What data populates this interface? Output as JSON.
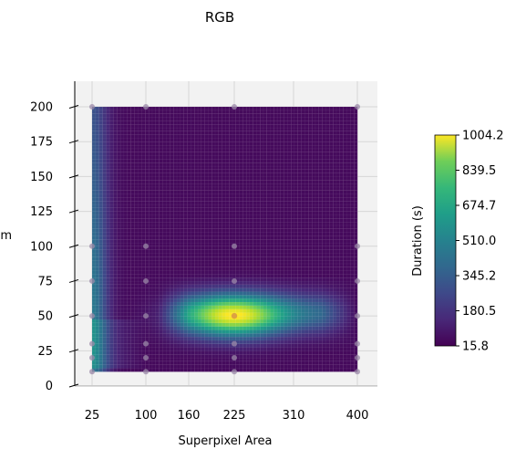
{
  "chart_data": {
    "type": "heatmap",
    "title": "RGB",
    "xlabel": "Superpixel Area",
    "ylabel": "m",
    "colorbar_label": "Duration (s)",
    "colormap": "viridis",
    "x_ticks": [
      25,
      100,
      160,
      225,
      310,
      400
    ],
    "y_ticks": [
      0,
      25,
      50,
      75,
      100,
      125,
      150,
      175,
      200
    ],
    "colorbar_ticks": [
      15.8,
      180.5,
      345.2,
      510.0,
      674.7,
      839.5,
      1004.2
    ],
    "xlim": [
      25,
      400
    ],
    "ylim": [
      10,
      200
    ],
    "zlim": [
      15.8,
      1004.2
    ],
    "grid": true,
    "sample_x": [
      25,
      100,
      225,
      400
    ],
    "sample_y": [
      10,
      20,
      30,
      50,
      75,
      100,
      200
    ],
    "peak": {
      "x": 225,
      "y": 50,
      "value": 1004.2
    }
  }
}
